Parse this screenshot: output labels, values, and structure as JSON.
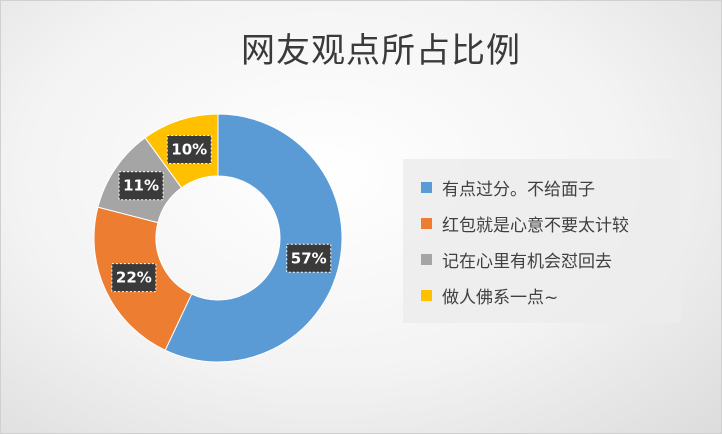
{
  "chart_data": {
    "type": "pie",
    "title": "网友观点所占比例",
    "categories": [
      "有点过分。不给面子",
      "红包就是心意不要太计较",
      "记在心里有机会怼回去",
      "做人佛系一点~"
    ],
    "values": [
      57,
      22,
      11,
      10
    ],
    "labels": [
      "57%",
      "22%",
      "11%",
      "10%"
    ],
    "colors": [
      "#5B9BD5",
      "#ED7D31",
      "#A5A5A5",
      "#FFC000"
    ],
    "donut": true,
    "legend_position": "right"
  }
}
